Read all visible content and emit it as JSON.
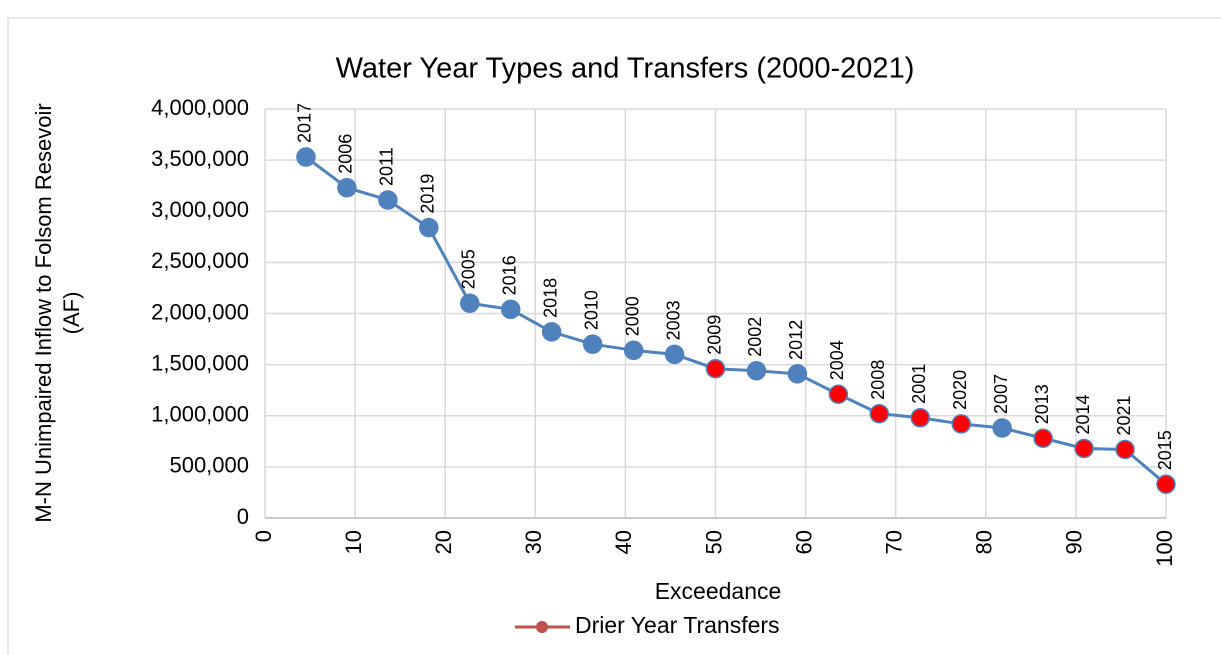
{
  "chart_data": {
    "type": "line",
    "title": "Water Year Types and Transfers (2000-2021)",
    "xlabel": "Exceedance",
    "ylabel": [
      "M-N Unimpaired Inflow to Folsom Resevoir",
      "(AF)"
    ],
    "x": [
      4.545,
      9.091,
      13.636,
      18.182,
      22.727,
      27.273,
      31.818,
      36.364,
      40.909,
      45.455,
      50,
      54.545,
      59.091,
      63.636,
      68.182,
      72.727,
      77.273,
      81.818,
      86.364,
      90.909,
      95.455,
      100
    ],
    "point_labels": [
      "2017",
      "2006",
      "2011",
      "2019",
      "2005",
      "2016",
      "2018",
      "2010",
      "2000",
      "2003",
      "2009",
      "2002",
      "2012",
      "2004",
      "2008",
      "2001",
      "2020",
      "2007",
      "2013",
      "2014",
      "2021",
      "2015"
    ],
    "series": [
      {
        "name": "Drier Year Transfers",
        "color": "#4f81bd",
        "legend_color": "#c0504d",
        "values": [
          3530000,
          3230000,
          3110000,
          2840000,
          2100000,
          2040000,
          1820000,
          1700000,
          1640000,
          1600000,
          1460000,
          1440000,
          1410000,
          1210000,
          1020000,
          980000,
          920000,
          880000,
          780000,
          680000,
          670000,
          330000
        ],
        "marker_colors": [
          "#4f81bd",
          "#4f81bd",
          "#4f81bd",
          "#4f81bd",
          "#4f81bd",
          "#4f81bd",
          "#4f81bd",
          "#4f81bd",
          "#4f81bd",
          "#4f81bd",
          "#ff0000",
          "#4f81bd",
          "#4f81bd",
          "#ff0000",
          "#ff0000",
          "#ff0000",
          "#ff0000",
          "#4f81bd",
          "#ff0000",
          "#ff0000",
          "#ff0000",
          "#ff0000"
        ]
      }
    ],
    "xlim": [
      0,
      100
    ],
    "xticks": [
      0,
      10,
      20,
      30,
      40,
      50,
      60,
      70,
      80,
      90,
      100
    ],
    "ylim": [
      0,
      4000000
    ],
    "yticks": [
      0,
      {
        "value": 500000,
        "label": "500,000"
      },
      {
        "value": 1000000,
        "label": "1,000,000"
      },
      {
        "value": 1500000,
        "label": "1,500,000"
      },
      {
        "value": 2000000,
        "label": "2,000,000"
      },
      {
        "value": 2500000,
        "label": "2,500,000"
      },
      {
        "value": 3000000,
        "label": "3,000,000"
      },
      {
        "value": 3500000,
        "label": "3,500,000"
      },
      {
        "value": 4000000,
        "label": "4,000,000"
      }
    ],
    "grid": true,
    "legend": "bottom"
  }
}
